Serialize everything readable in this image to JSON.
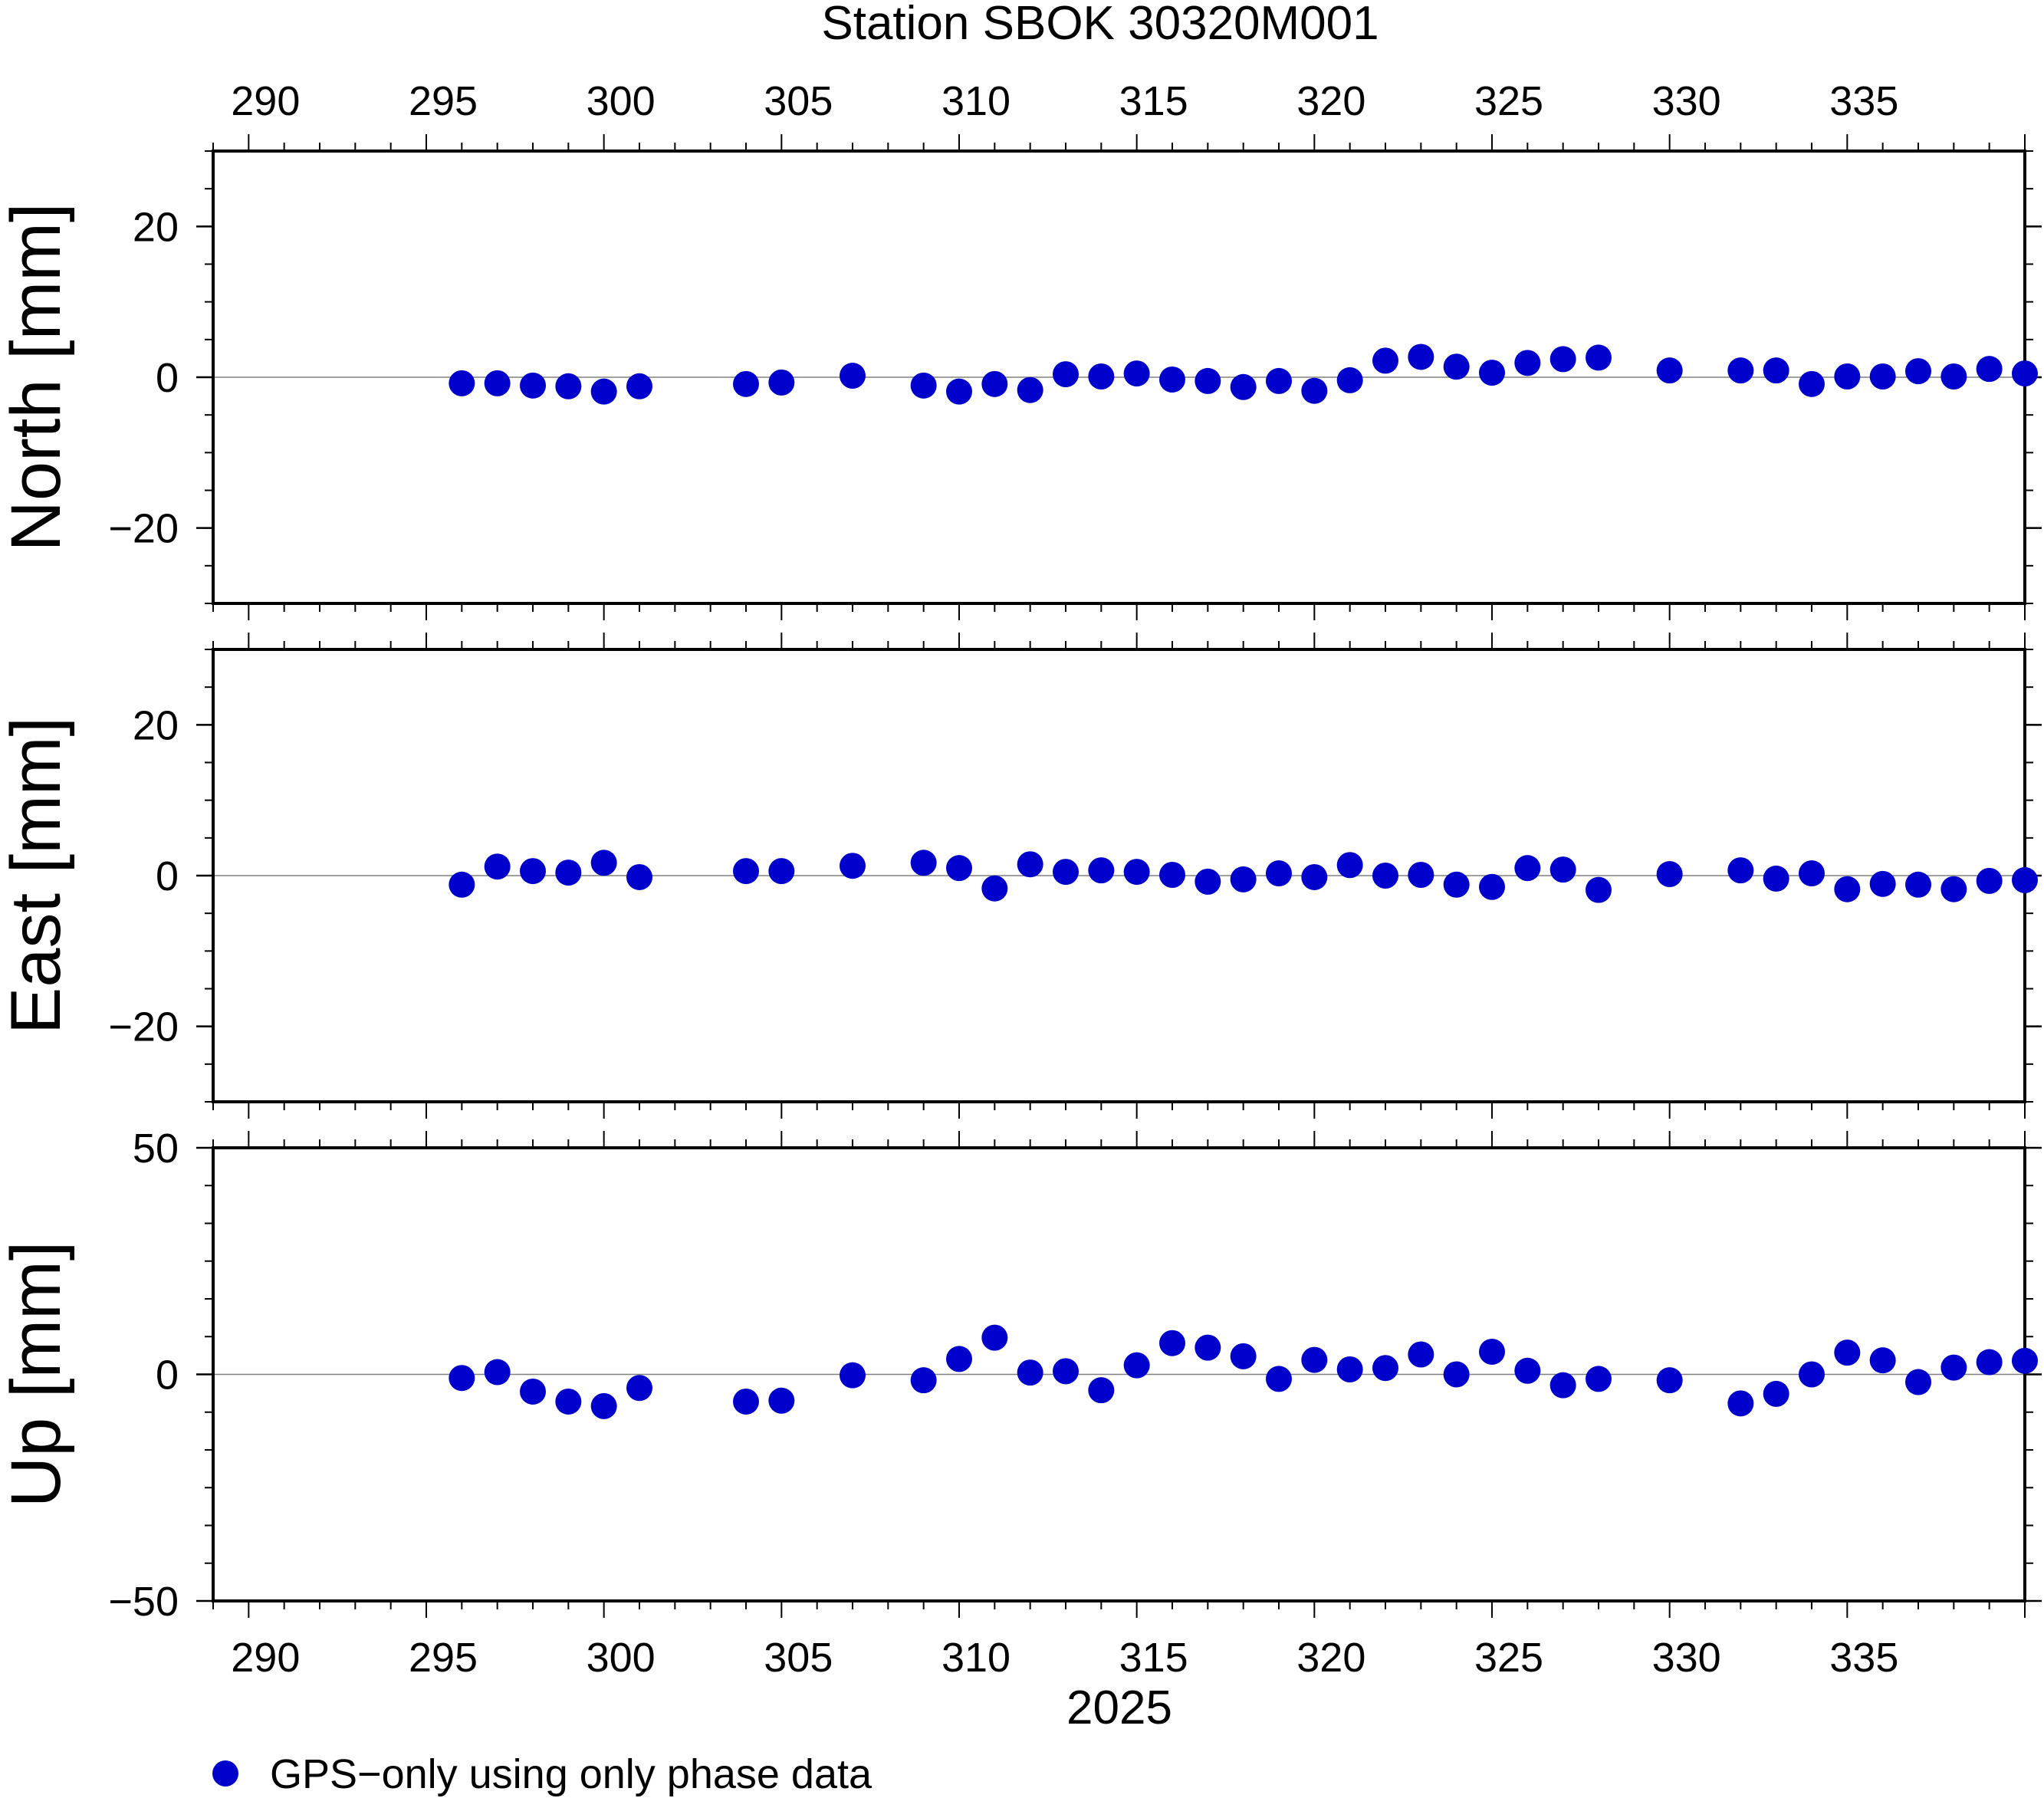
{
  "title": "Station SBOK 30320M001",
  "colors": {
    "point": "#0000cc",
    "frame": "#000000",
    "zero_line": "#808080"
  },
  "legend": {
    "label": "GPS−only using only phase data",
    "symbol": "filled-circle"
  },
  "chart_data": {
    "type": "scatter",
    "xlabel": "2025",
    "xlim": [
      289,
      340
    ],
    "x_ticks": [
      290,
      295,
      300,
      305,
      310,
      315,
      320,
      325,
      330,
      335
    ],
    "x_tick_labels": [
      "290",
      "295",
      "300",
      "305",
      "310",
      "315",
      "320",
      "325",
      "330",
      "335"
    ],
    "x": [
      296,
      297,
      298,
      299,
      300,
      301,
      304,
      305,
      307,
      309,
      310,
      311,
      312,
      313,
      314,
      315,
      316,
      317,
      318,
      319,
      320,
      321,
      322,
      323,
      324,
      325,
      326,
      327,
      328,
      330,
      332,
      333,
      334,
      335,
      336,
      337,
      338,
      339,
      340
    ],
    "legend_position": "bottom-left",
    "panels": [
      {
        "ylabel": "North [mm]",
        "ylim": [
          -30,
          30
        ],
        "y_ticks": [
          20,
          0,
          -20
        ],
        "y_tick_labels": [
          "20",
          "0",
          "−20"
        ],
        "values": [
          -0.8,
          -0.8,
          -1.1,
          -1.2,
          -1.9,
          -1.2,
          -0.9,
          -0.7,
          0.2,
          -1.1,
          -1.9,
          -0.9,
          -1.7,
          0.4,
          0.1,
          0.5,
          -0.3,
          -0.5,
          -1.3,
          -0.5,
          -1.8,
          -0.4,
          2.2,
          2.7,
          1.4,
          0.6,
          1.9,
          2.4,
          2.6,
          0.9,
          0.9,
          0.9,
          -0.9,
          0.1,
          0.1,
          0.8,
          0.1,
          1.1,
          0.5
        ]
      },
      {
        "ylabel": "East [mm]",
        "ylim": [
          -30,
          30
        ],
        "y_ticks": [
          20,
          0,
          -20
        ],
        "y_tick_labels": [
          "20",
          "0",
          "−20"
        ],
        "values": [
          -1.2,
          1.2,
          0.6,
          0.4,
          1.7,
          -0.2,
          0.6,
          0.6,
          1.3,
          1.7,
          1.0,
          -1.7,
          1.5,
          0.5,
          0.7,
          0.5,
          0.1,
          -0.8,
          -0.5,
          0.3,
          -0.2,
          1.4,
          0.0,
          0.1,
          -1.2,
          -1.5,
          1.0,
          0.8,
          -1.9,
          0.2,
          0.7,
          -0.4,
          0.3,
          -1.8,
          -1.1,
          -1.2,
          -1.8,
          -0.7,
          -0.6
        ]
      },
      {
        "ylabel": "Up [mm]",
        "ylim": [
          -50,
          50
        ],
        "y_ticks": [
          50,
          0,
          -50
        ],
        "y_tick_labels": [
          "50",
          "0",
          "−50"
        ],
        "values": [
          -0.8,
          0.5,
          -3.8,
          -6.0,
          -7.0,
          -3.0,
          -6.0,
          -5.8,
          -0.2,
          -1.3,
          3.4,
          8.1,
          0.4,
          0.7,
          -3.5,
          2.0,
          6.9,
          5.9,
          4.0,
          -1.0,
          3.2,
          1.1,
          1.4,
          4.4,
          0.0,
          5.0,
          0.8,
          -2.4,
          -1.0,
          -1.3,
          -6.4,
          -4.3,
          0.0,
          4.8,
          3.1,
          -1.7,
          1.5,
          2.7,
          3.0
        ]
      }
    ]
  }
}
